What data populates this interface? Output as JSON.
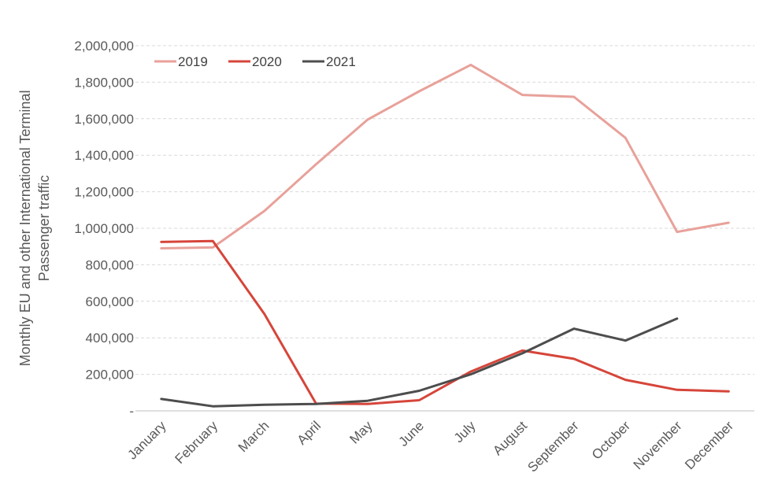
{
  "chart_data": {
    "type": "line",
    "title": "",
    "xlabel": "",
    "ylabel_lines": [
      "Monthly EU and other International Terminal",
      "Passenger traffic"
    ],
    "categories": [
      "January",
      "February",
      "March",
      "April",
      "May",
      "June",
      "July",
      "August",
      "September",
      "October",
      "November",
      "December"
    ],
    "ylim": [
      0,
      2000000
    ],
    "yticks": [
      0,
      200000,
      400000,
      600000,
      800000,
      1000000,
      1200000,
      1400000,
      1600000,
      1800000,
      2000000
    ],
    "ytick_labels": [
      "-",
      "200,000",
      "400,000",
      "600,000",
      "800,000",
      "1,000,000",
      "1,200,000",
      "1,400,000",
      "1,600,000",
      "1,800,000",
      "2,000,000"
    ],
    "grid": true,
    "legend_position": "top-left",
    "series": [
      {
        "name": "2019",
        "color": "#e8a19a",
        "values": [
          890000,
          895000,
          1095000,
          1350000,
          1595000,
          1750000,
          1895000,
          1730000,
          1720000,
          1495000,
          980000,
          1030000
        ]
      },
      {
        "name": "2020",
        "color": "#d6453a",
        "values": [
          925000,
          930000,
          530000,
          40000,
          38000,
          58000,
          215000,
          330000,
          285000,
          170000,
          115000,
          107000
        ]
      },
      {
        "name": "2021",
        "color": "#4d4d4d",
        "values": [
          65000,
          25000,
          33000,
          38000,
          55000,
          110000,
          200000,
          315000,
          450000,
          385000,
          505000,
          null
        ]
      }
    ]
  }
}
